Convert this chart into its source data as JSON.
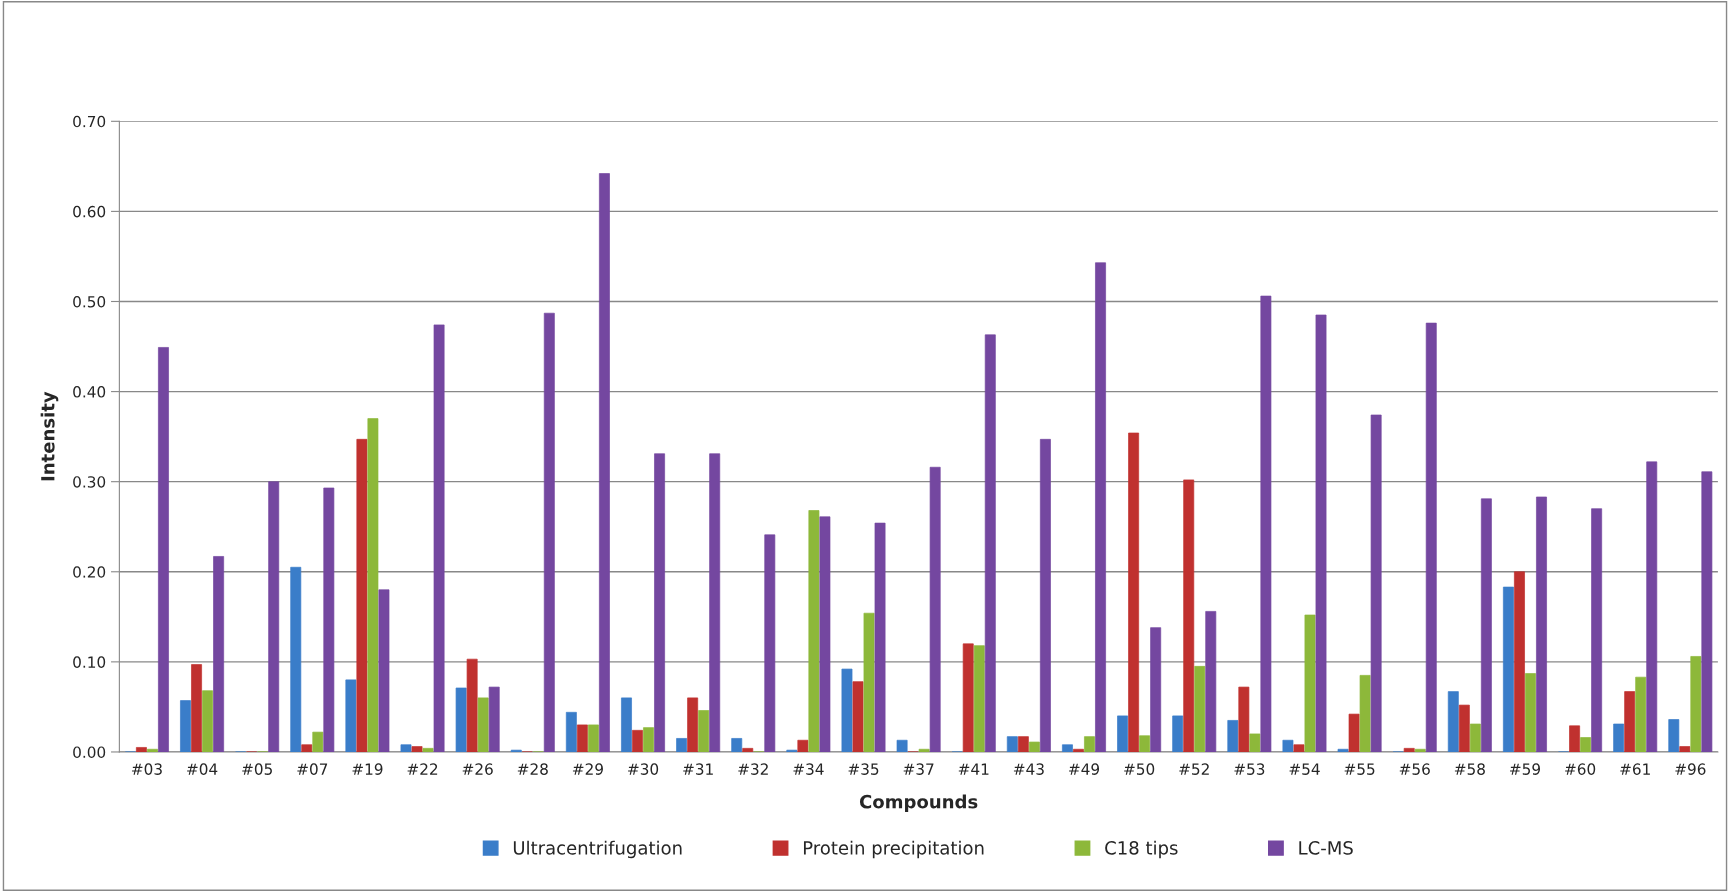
{
  "chart_data": {
    "type": "bar",
    "xlabel": "Compounds",
    "ylabel": "Intensity",
    "categories": [
      "#03",
      "#04",
      "#05",
      "#07",
      "#19",
      "#22",
      "#26",
      "#28",
      "#29",
      "#30",
      "#31",
      "#32",
      "#34",
      "#35",
      "#37",
      "#41",
      "#43",
      "#49",
      "#50",
      "#52",
      "#53",
      "#54",
      "#55",
      "#56",
      "#58",
      "#59",
      "#60",
      "#61",
      "#96"
    ],
    "series": [
      {
        "name": "Ultracentrifugation",
        "color": "#3a7dc9",
        "values": [
          0,
          0.057,
          0,
          0.205,
          0.08,
          0.008,
          0.071,
          0.002,
          0.044,
          0.06,
          0.015,
          0.015,
          0.002,
          0.092,
          0.013,
          0,
          0.017,
          0.008,
          0.04,
          0.04,
          0.035,
          0.013,
          0.003,
          0,
          0.067,
          0.183,
          0,
          0.031,
          0.036
        ]
      },
      {
        "name": "Protein precipitation",
        "color": "#c0312f",
        "values": [
          0.005,
          0.097,
          0,
          0.008,
          0.347,
          0.006,
          0.103,
          0,
          0.03,
          0.024,
          0.06,
          0.004,
          0.013,
          0.078,
          0,
          0.12,
          0.017,
          0.003,
          0.354,
          0.302,
          0.072,
          0.008,
          0.042,
          0.004,
          0.052,
          0.2,
          0.029,
          0.067,
          0.006
        ]
      },
      {
        "name": "C18 tips",
        "color": "#8db83a",
        "values": [
          0.003,
          0.068,
          0,
          0.022,
          0.37,
          0.004,
          0.06,
          0,
          0.03,
          0.027,
          0.046,
          0,
          0.268,
          0.154,
          0.003,
          0.118,
          0.011,
          0.017,
          0.018,
          0.095,
          0.02,
          0.152,
          0.085,
          0.003,
          0.031,
          0.087,
          0.016,
          0.083,
          0.106
        ]
      },
      {
        "name": "LC-MS",
        "color": "#7447a0",
        "values": [
          0.449,
          0.217,
          0.3,
          0.293,
          0.18,
          0.474,
          0.072,
          0.487,
          0.642,
          0.331,
          0.331,
          0.241,
          0.261,
          0.254,
          0.316,
          0.463,
          0.347,
          0.543,
          0.138,
          0.156,
          0.506,
          0.485,
          0.374,
          0.476,
          0.281,
          0.283,
          0.27,
          0.322,
          0.311
        ]
      }
    ],
    "ylim": [
      0,
      0.7
    ],
    "yticks": [
      {
        "value": 0,
        "label": "0.00"
      },
      {
        "value": 0.1,
        "label": "0.10"
      },
      {
        "value": 0.2,
        "label": "0.20"
      },
      {
        "value": 0.3,
        "label": "0.30"
      },
      {
        "value": 0.4,
        "label": "0.40"
      },
      {
        "value": 0.5,
        "label": "0.50"
      },
      {
        "value": 0.6,
        "label": "0.60"
      },
      {
        "value": 0.7,
        "label": "0.70"
      }
    ],
    "grid": "y",
    "legend": "bottom"
  }
}
